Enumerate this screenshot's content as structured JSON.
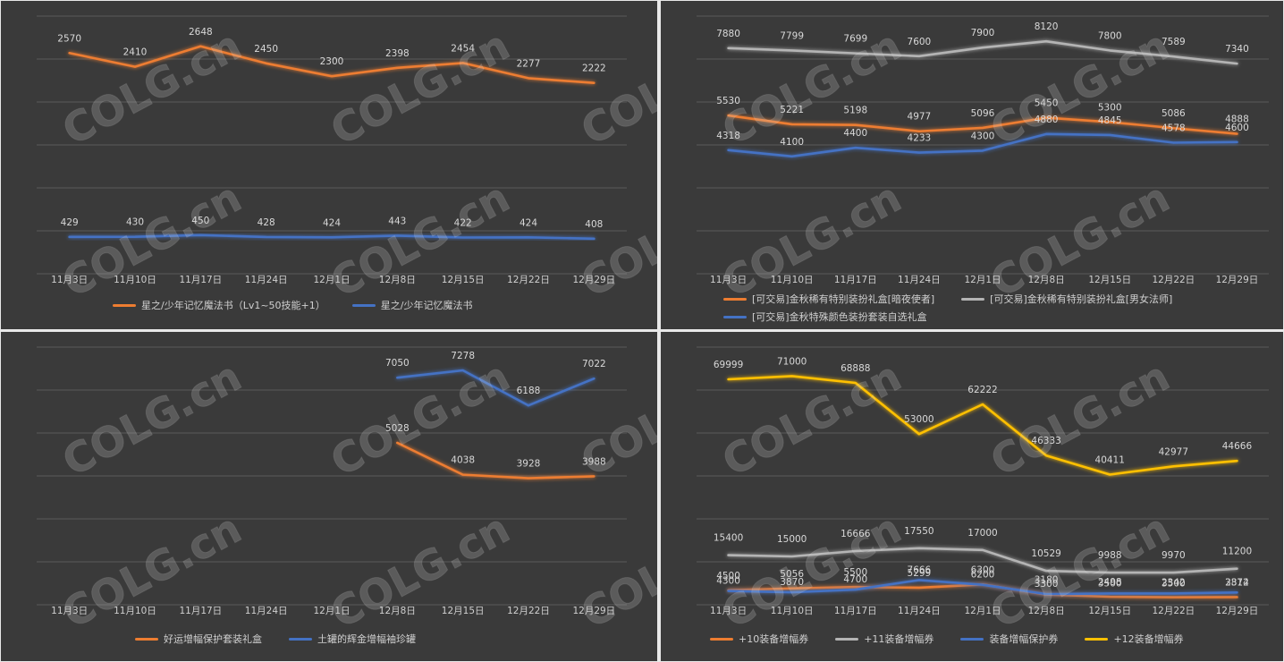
{
  "watermark_text": "COLG.cn",
  "colors": {
    "orange": "#ed7d31",
    "gray": "#b4b4b4",
    "blue": "#4472c4",
    "yellow": "#ffc000",
    "grid": "#595959",
    "text": "#d0d0d0",
    "panel_bg": "#3a3a3a"
  },
  "chart_data": [
    {
      "id": "tl",
      "type": "line",
      "categories": [
        "11月3日",
        "11月10日",
        "11月17日",
        "11月24日",
        "12月1日",
        "12月8日",
        "12月15日",
        "12月22日",
        "12月29日"
      ],
      "ylim": [
        0,
        3000
      ],
      "grid": true,
      "legend": "bottom",
      "series": [
        {
          "name": "星之/少年记忆魔法书（Lv1~50技能+1）",
          "color": "#ed7d31",
          "values": [
            2570,
            2410,
            2648,
            2450,
            2300,
            2398,
            2454,
            2277,
            2222
          ]
        },
        {
          "name": "星之/少年记忆魔法书",
          "color": "#4472c4",
          "values": [
            429,
            430,
            450,
            428,
            424,
            443,
            422,
            424,
            408
          ]
        }
      ]
    },
    {
      "id": "tr",
      "type": "line",
      "categories": [
        "11月3日",
        "11月10日",
        "11月17日",
        "11月24日",
        "12月1日",
        "12月8日",
        "12月15日",
        "12月22日",
        "12月29日"
      ],
      "ylim": [
        0,
        9000
      ],
      "grid": true,
      "legend": "bottom",
      "series": [
        {
          "name": "[可交易]金秋稀有特别装扮礼盒[暗夜使者]",
          "color": "#ed7d31",
          "values": [
            5530,
            5221,
            5198,
            4977,
            5096,
            5450,
            5300,
            5086,
            4888
          ]
        },
        {
          "name": "[可交易]金秋稀有特别装扮礼盒[男女法师]",
          "color": "#b4b4b4",
          "values": [
            7880,
            7799,
            7699,
            7600,
            7900,
            8120,
            7800,
            7589,
            7340
          ]
        },
        {
          "name": "[可交易]金秋特殊颜色装扮套装自选礼盒",
          "color": "#4472c4",
          "values": [
            4318,
            4100,
            4400,
            4233,
            4300,
            4880,
            4845,
            4578,
            4600
          ]
        }
      ]
    },
    {
      "id": "bl",
      "type": "line",
      "categories": [
        "11月3日",
        "11月10日",
        "11月17日",
        "11月24日",
        "12月1日",
        "12月8日",
        "12月15日",
        "12月22日",
        "12月29日"
      ],
      "ylim": [
        0,
        8000
      ],
      "grid": true,
      "legend": "bottom",
      "series": [
        {
          "name": "好运增幅保护套装礼盒",
          "color": "#ed7d31",
          "values": [
            null,
            null,
            null,
            null,
            null,
            5028,
            4038,
            3928,
            3988
          ]
        },
        {
          "name": "土罐的辉金增幅袖珍罐",
          "color": "#4472c4",
          "values": [
            null,
            null,
            null,
            null,
            null,
            7050,
            7278,
            6188,
            7022
          ]
        }
      ]
    },
    {
      "id": "br",
      "type": "line",
      "categories": [
        "11月3日",
        "11月10日",
        "11月17日",
        "11月24日",
        "12月1日",
        "12月8日",
        "12月15日",
        "12月22日",
        "12月29日"
      ],
      "ylim": [
        0,
        80000
      ],
      "grid": true,
      "legend": "bottom",
      "series": [
        {
          "name": "+10装备增幅券",
          "color": "#ed7d31",
          "values": [
            4500,
            5056,
            5500,
            5299,
            6300,
            3180,
            2498,
            2342,
            2374
          ]
        },
        {
          "name": "+11装备增幅券",
          "color": "#b4b4b4",
          "values": [
            15400,
            15000,
            16666,
            17550,
            17000,
            10529,
            9988,
            9970,
            11200
          ]
        },
        {
          "name": "装备增幅保护券",
          "color": "#4472c4",
          "values": [
            4300,
            3870,
            4700,
            7666,
            6200,
            3300,
            3500,
            3500,
            3812
          ]
        },
        {
          "name": "+12装备增幅券",
          "color": "#ffc000",
          "values": [
            69999,
            71000,
            68888,
            53000,
            62222,
            46333,
            40411,
            42977,
            44666
          ]
        }
      ]
    }
  ]
}
